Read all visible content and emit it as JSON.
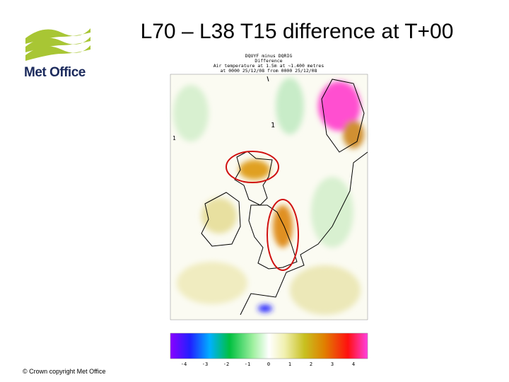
{
  "slide": {
    "title": "L70 – L38 T15 difference at T+00",
    "logo": "Met Office",
    "footer": "© Crown copyright   Met Office"
  },
  "map": {
    "header": [
      "DQUYF minus DQRIG",
      "Difference",
      "Air temperature at 1.5m at ~1.400 metres",
      "at 0000 25/12/08 from 0000 25/12/08"
    ],
    "annotations": [
      "1",
      "1"
    ],
    "colorbar_labels": [
      "-4",
      "-3",
      "-2",
      "-1",
      "0",
      "1",
      "2",
      "3",
      "4"
    ]
  }
}
